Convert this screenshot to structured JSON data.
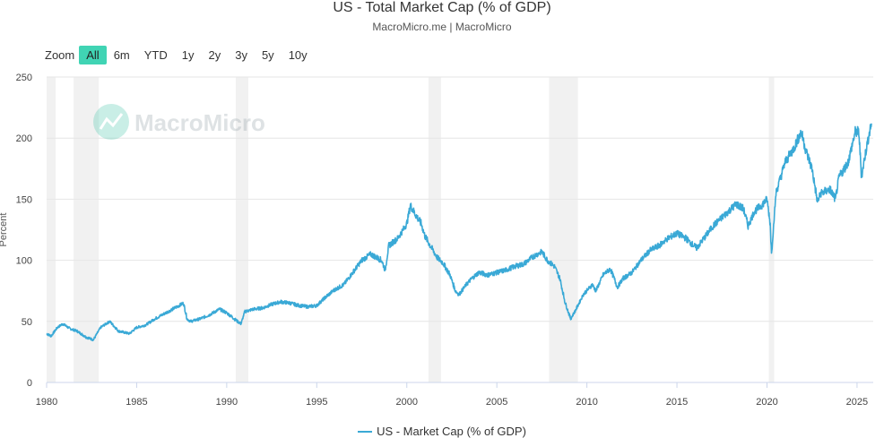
{
  "header": {
    "title": "US - Total Market Cap (% of GDP)",
    "subtitle": "MacroMicro.me | MacroMicro"
  },
  "zoom": {
    "label": "Zoom",
    "buttons": [
      "All",
      "6m",
      "YTD",
      "1y",
      "2y",
      "3y",
      "5y",
      "10y"
    ],
    "active": "All"
  },
  "watermark": "MacroMicro",
  "colors": {
    "series": "#3aa9d6",
    "recession": "#f1f1f1",
    "grid": "#e6e6e6",
    "active": "#40d4b4"
  },
  "chart_data": {
    "type": "line",
    "title": "US - Total Market Cap (% of GDP)",
    "ylabel": "Percent",
    "xlabel": "",
    "ylim": [
      0,
      250
    ],
    "xlim": [
      1980,
      2025.9
    ],
    "yticks": [
      0,
      50,
      100,
      150,
      200,
      250
    ],
    "xticks": [
      1980,
      1985,
      1990,
      1995,
      2000,
      2005,
      2010,
      2015,
      2020,
      2025
    ],
    "recessions": [
      [
        1980.0,
        1980.5
      ],
      [
        1981.5,
        1982.9
      ],
      [
        1990.5,
        1991.2
      ],
      [
        2001.2,
        2001.9
      ],
      [
        2007.9,
        2009.5
      ],
      [
        2020.1,
        2020.4
      ]
    ],
    "series": [
      {
        "name": "US - Market Cap (% of GDP)",
        "x": [
          1980.0,
          1980.25,
          1980.6,
          1980.9,
          1981.3,
          1981.7,
          1982.2,
          1982.6,
          1983.0,
          1983.5,
          1984.0,
          1984.6,
          1985.0,
          1985.5,
          1986.0,
          1986.5,
          1987.0,
          1987.6,
          1987.8,
          1988.0,
          1988.5,
          1989.0,
          1989.6,
          1990.0,
          1990.6,
          1990.8,
          1991.0,
          1991.5,
          1992.0,
          1992.5,
          1993.0,
          1993.5,
          1994.0,
          1994.5,
          1995.0,
          1995.5,
          1996.0,
          1996.5,
          1997.0,
          1997.5,
          1998.0,
          1998.6,
          1998.8,
          1999.0,
          1999.5,
          2000.0,
          2000.2,
          2000.5,
          2000.8,
          2001.0,
          2001.3,
          2001.7,
          2002.0,
          2002.4,
          2002.7,
          2002.9,
          2003.3,
          2003.6,
          2004.0,
          2004.5,
          2005.0,
          2005.5,
          2006.0,
          2006.5,
          2007.0,
          2007.5,
          2007.8,
          2008.2,
          2008.5,
          2008.8,
          2009.1,
          2009.4,
          2009.8,
          2010.3,
          2010.5,
          2010.9,
          2011.3,
          2011.7,
          2012.0,
          2012.5,
          2013.0,
          2013.5,
          2014.0,
          2014.5,
          2015.0,
          2015.5,
          2015.7,
          2016.1,
          2016.5,
          2017.0,
          2017.5,
          2018.0,
          2018.3,
          2018.7,
          2018.95,
          2019.3,
          2019.7,
          2020.0,
          2020.18,
          2020.25,
          2020.5,
          2020.8,
          2021.0,
          2021.5,
          2021.9,
          2022.2,
          2022.5,
          2022.8,
          2023.0,
          2023.5,
          2023.8,
          2024.0,
          2024.5,
          2024.9,
          2025.1,
          2025.25,
          2025.4,
          2025.6,
          2025.8
        ],
        "values": [
          40,
          38,
          45,
          48,
          44,
          42,
          37,
          35,
          45,
          50,
          42,
          40,
          45,
          47,
          52,
          56,
          60,
          65,
          52,
          50,
          52,
          55,
          60,
          57,
          50,
          48,
          58,
          60,
          61,
          64,
          66,
          65,
          63,
          62,
          63,
          70,
          76,
          80,
          90,
          100,
          105,
          100,
          92,
          112,
          118,
          130,
          145,
          137,
          130,
          120,
          112,
          102,
          98,
          88,
          75,
          72,
          80,
          85,
          90,
          88,
          90,
          92,
          95,
          97,
          103,
          107,
          100,
          95,
          85,
          65,
          52,
          60,
          72,
          80,
          75,
          88,
          93,
          78,
          85,
          90,
          100,
          108,
          112,
          118,
          122,
          118,
          115,
          110,
          118,
          128,
          135,
          142,
          146,
          142,
          128,
          140,
          145,
          150,
          130,
          105,
          155,
          170,
          180,
          192,
          205,
          188,
          175,
          148,
          155,
          158,
          150,
          168,
          180,
          205,
          205,
          168,
          182,
          198,
          212
        ]
      }
    ]
  },
  "legend": {
    "label": "US - Market Cap (% of GDP)"
  }
}
